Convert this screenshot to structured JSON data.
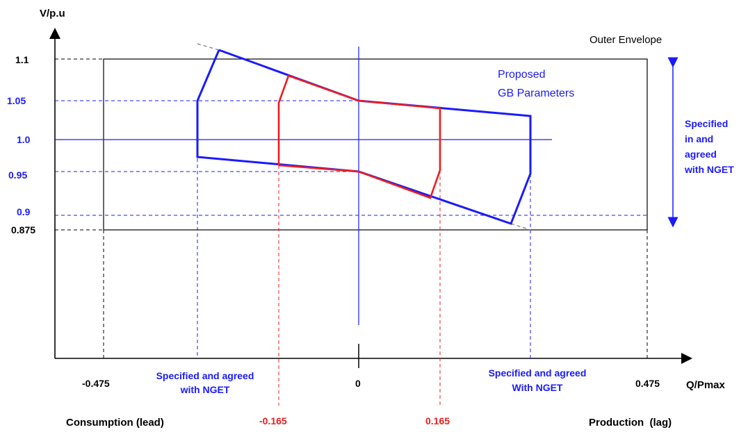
{
  "colors": {
    "black": "#000000",
    "blue": "#1a1aff",
    "red": "#ee1c1c",
    "grey": "#777777"
  },
  "axes": {
    "y_title": "V/p.u",
    "x_title": "Q/Pmax"
  },
  "y_ticks": [
    {
      "label": "1.1",
      "color": "black"
    },
    {
      "label": "1.05",
      "color": "blue"
    },
    {
      "label": "1.0",
      "color": "blue"
    },
    {
      "label": "0.95",
      "color": "blue"
    },
    {
      "label": "0.9",
      "color": "blue"
    },
    {
      "label": "0.875",
      "color": "black"
    }
  ],
  "x_ticks": [
    {
      "label": "-0.475",
      "color": "black"
    },
    {
      "label": "0",
      "color": "black"
    },
    {
      "label": "0.475",
      "color": "black"
    },
    {
      "label": "-0.165",
      "color": "red"
    },
    {
      "label": "0.165",
      "color": "red"
    }
  ],
  "labels": {
    "outer_envelope": "Outer Envelope",
    "proposed_line1": "Proposed",
    "proposed_line2": "GB Parameters",
    "specified_right_1": "Specified",
    "specified_right_2": "in and",
    "specified_right_3": "agreed",
    "specified_right_4": "with NGET",
    "specified_left_1": "Specified and agreed",
    "specified_left_2": "with NGET",
    "specified_mid_1": "Specified and agreed",
    "specified_mid_2": "With NGET",
    "consumption": "Consumption  (lead)",
    "production": "Production  (lag)"
  }
}
